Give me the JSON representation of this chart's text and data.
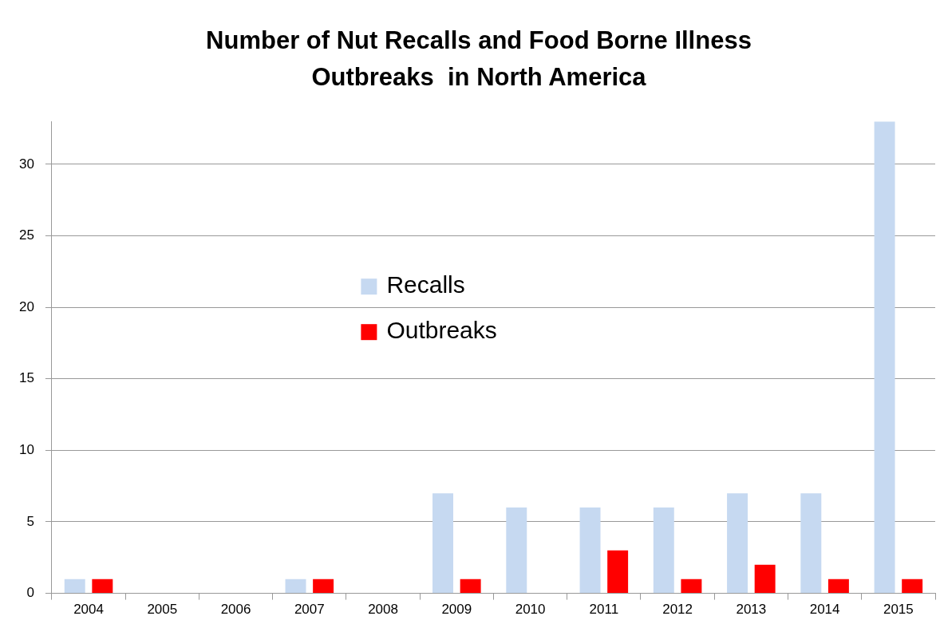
{
  "chart_data": {
    "type": "bar",
    "title": "Number of Nut Recalls and Food Borne Illness Outbreaks  in North America",
    "categories": [
      "2004",
      "2005",
      "2006",
      "2007",
      "2008",
      "2009",
      "2010",
      "2011",
      "2012",
      "2013",
      "2014",
      "2015"
    ],
    "series": [
      {
        "name": "Recalls",
        "color": "#c6d9f1",
        "values": [
          1,
          0,
          0,
          1,
          0,
          7,
          6,
          6,
          6,
          7,
          7,
          33
        ]
      },
      {
        "name": "Outbreaks",
        "color": "#ff0000",
        "values": [
          1,
          0,
          0,
          1,
          0,
          1,
          0,
          3,
          1,
          2,
          1,
          1
        ]
      }
    ],
    "ylim": [
      0,
      33
    ],
    "yticks": [
      0,
      5,
      10,
      15,
      20,
      25,
      30
    ],
    "grid": "y",
    "legend": "center"
  }
}
